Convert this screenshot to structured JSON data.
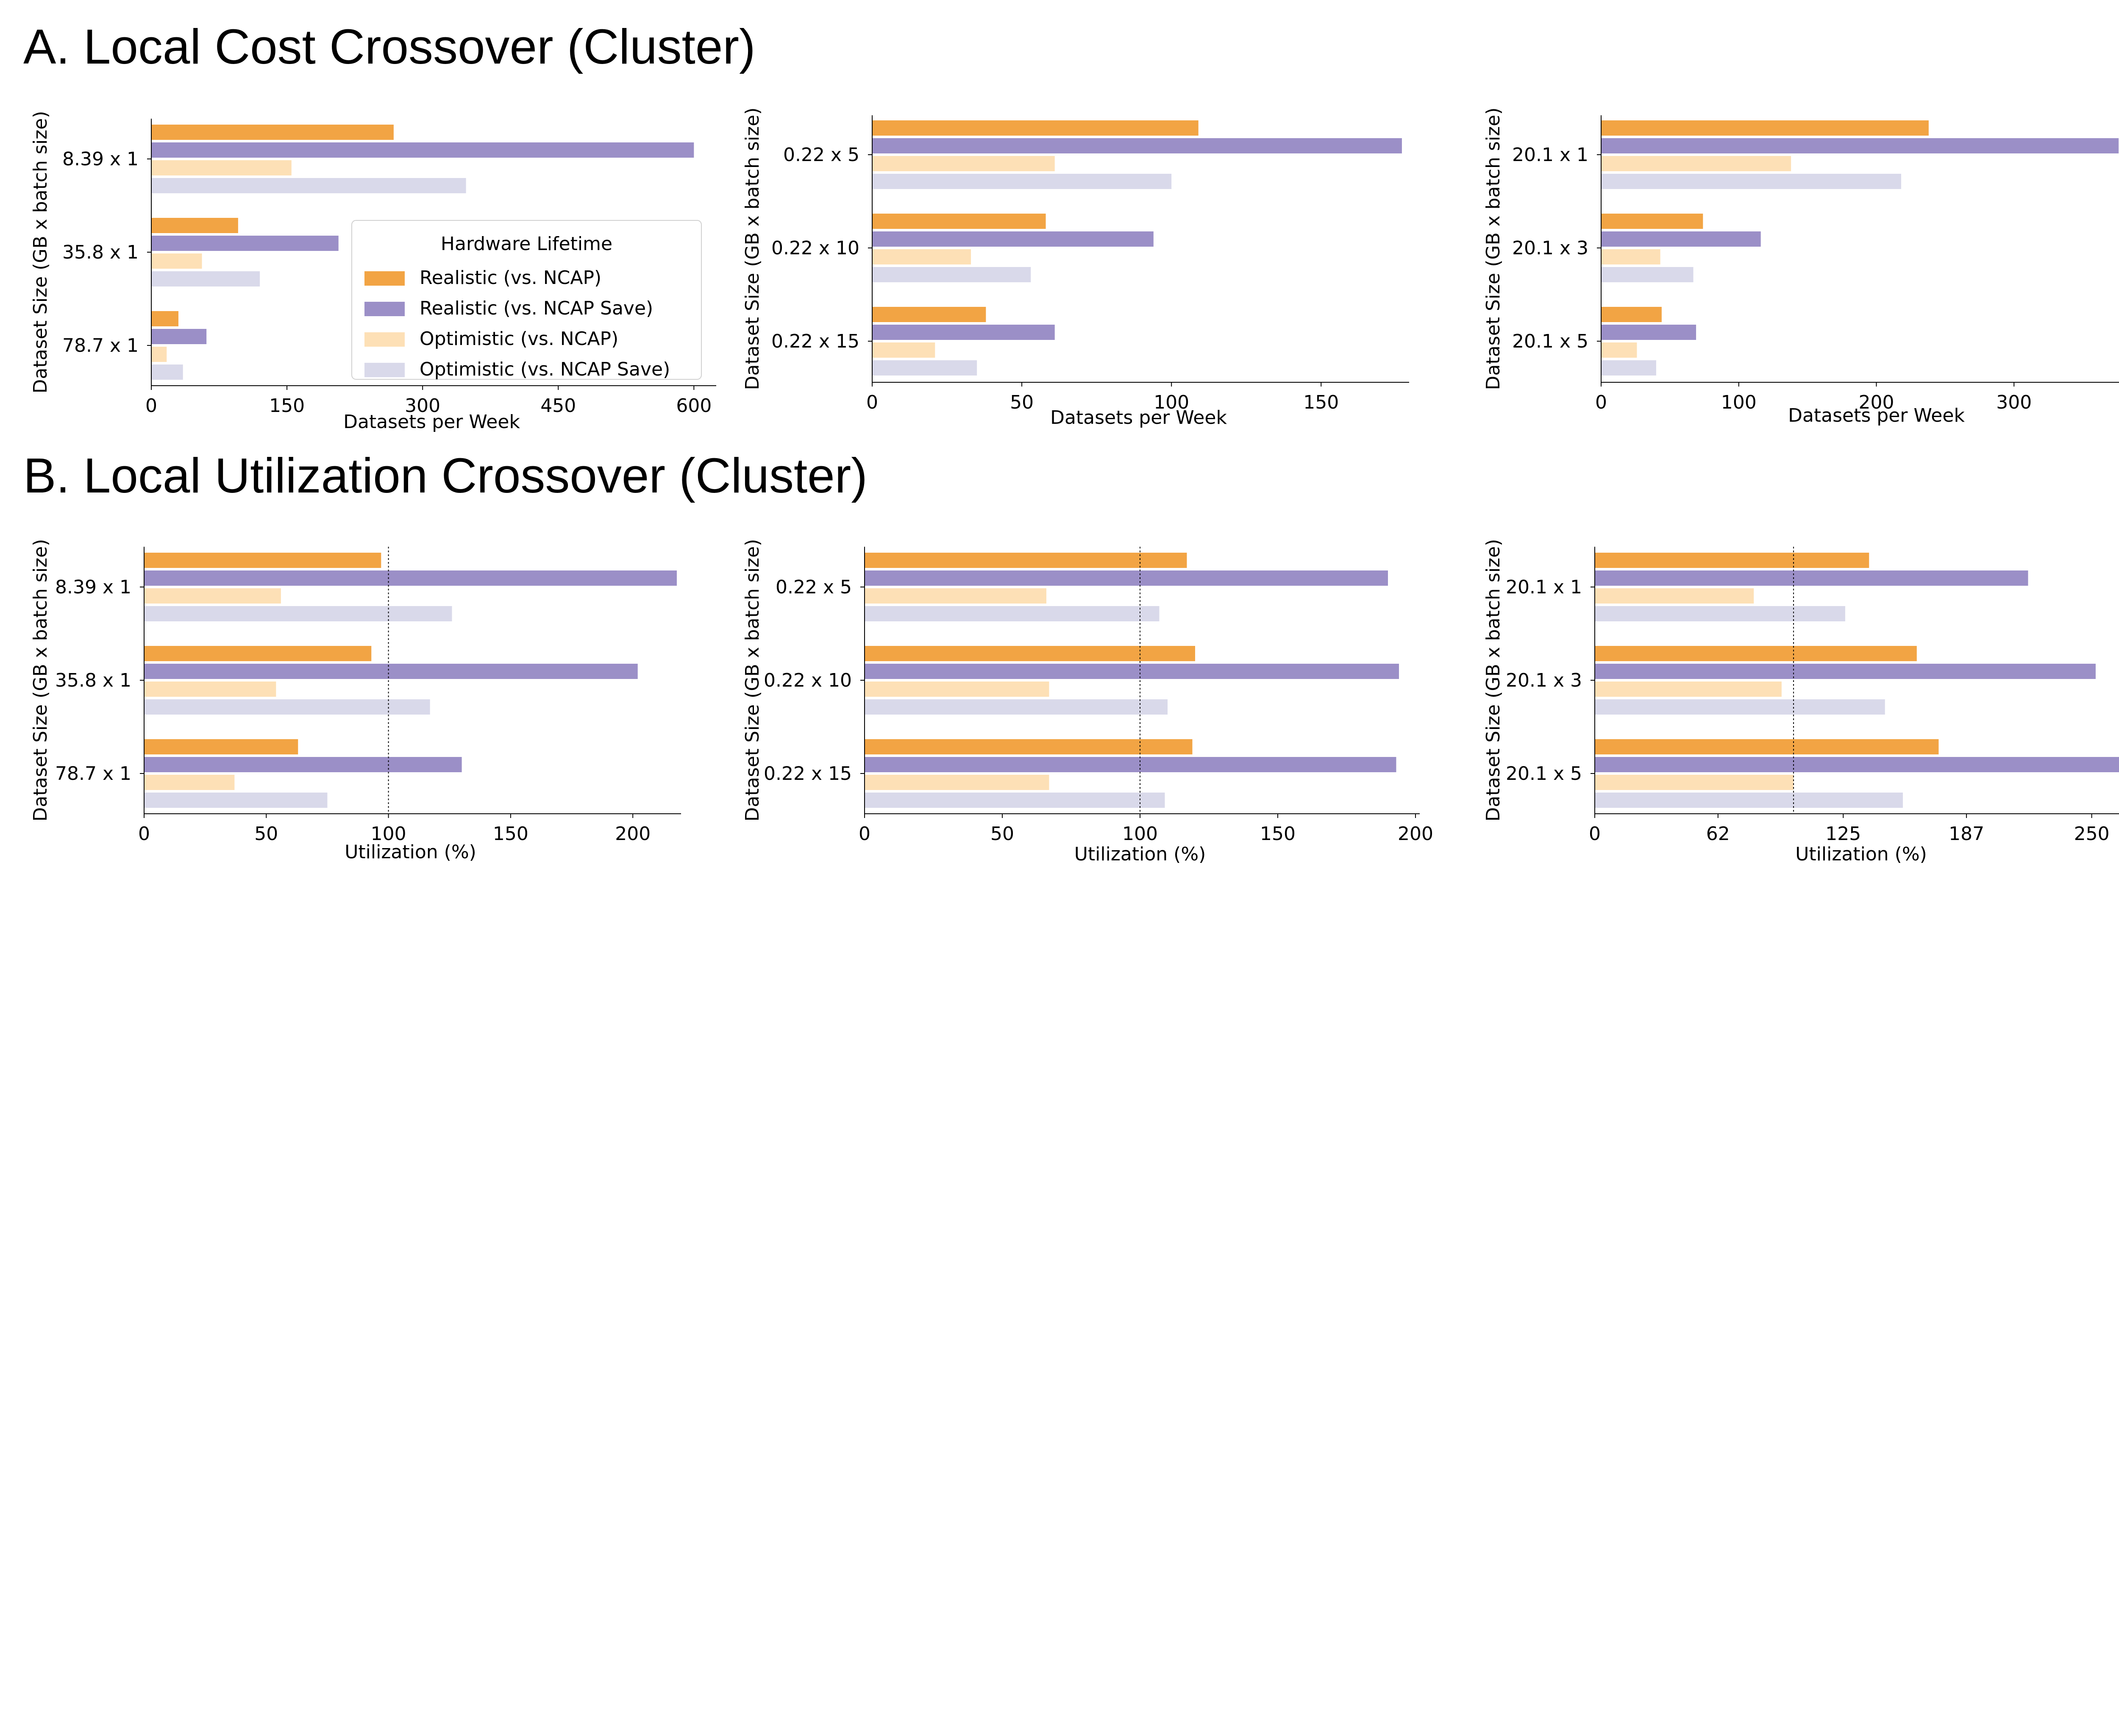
{
  "sections": [
    {
      "id": "A",
      "title": "A. Local Cost Crossover (Cluster)"
    },
    {
      "id": "B",
      "title": "B. Local Utilization Crossover (Cluster)"
    }
  ],
  "legend": {
    "title": "Hardware Lifetime",
    "entries": [
      "Realistic (vs. NCAP)",
      "Realistic (vs. NCAP Save)",
      "Optimistic (vs. NCAP)",
      "Optimistic (vs. NCAP Save)"
    ]
  },
  "colors": [
    "#f2a444",
    "#9b8fc7",
    "#fde0b6",
    "#d9d9ea"
  ],
  "chart_data": [
    {
      "type": "bar",
      "orientation": "horizontal",
      "section": "A",
      "categories": [
        "8.39 x 1",
        "35.8 x 1",
        "78.7 x 1"
      ],
      "xlabel": "Datasets per Week",
      "ylabel": "Dataset Size (GB x batch size)",
      "xlim": [
        0,
        620
      ],
      "xticks": [
        0,
        150,
        300,
        450,
        600
      ],
      "legend_location": "center-right",
      "grid": false,
      "series": [
        {
          "name": "Realistic (vs. NCAP)",
          "values": [
            268,
            96,
            30
          ]
        },
        {
          "name": "Realistic (vs. NCAP Save)",
          "values": [
            600,
            207,
            61
          ]
        },
        {
          "name": "Optimistic (vs. NCAP)",
          "values": [
            155,
            56,
            17
          ]
        },
        {
          "name": "Optimistic (vs. NCAP Save)",
          "values": [
            348,
            120,
            35
          ]
        }
      ]
    },
    {
      "type": "bar",
      "orientation": "horizontal",
      "section": "A",
      "categories": [
        "0.22 x 5",
        "0.22 x 10",
        "0.22 x 15"
      ],
      "xlabel": "Datasets per Week",
      "ylabel": "Dataset Size (GB x batch size)",
      "xlim": [
        0,
        178
      ],
      "xticks": [
        0,
        50,
        100,
        150
      ],
      "grid": false,
      "series": [
        {
          "name": "Realistic (vs. NCAP)",
          "values": [
            109,
            58,
            38
          ]
        },
        {
          "name": "Realistic (vs. NCAP Save)",
          "values": [
            177,
            94,
            61
          ]
        },
        {
          "name": "Optimistic (vs. NCAP)",
          "values": [
            61,
            33,
            21
          ]
        },
        {
          "name": "Optimistic (vs. NCAP Save)",
          "values": [
            100,
            53,
            35
          ]
        }
      ]
    },
    {
      "type": "bar",
      "orientation": "horizontal",
      "section": "A",
      "categories": [
        "20.1 x 1",
        "20.1 x 3",
        "20.1 x 5"
      ],
      "xlabel": "Datasets per Week",
      "ylabel": "Dataset Size (GB x batch size)",
      "xlim": [
        0,
        400
      ],
      "xticks": [
        0,
        100,
        200,
        300,
        400
      ],
      "grid": false,
      "series": [
        {
          "name": "Realistic (vs. NCAP)",
          "values": [
            238,
            74,
            44
          ]
        },
        {
          "name": "Realistic (vs. NCAP Save)",
          "values": [
            376,
            116,
            69
          ]
        },
        {
          "name": "Optimistic (vs. NCAP)",
          "values": [
            138,
            43,
            26
          ]
        },
        {
          "name": "Optimistic (vs. NCAP Save)",
          "values": [
            218,
            67,
            40
          ]
        }
      ]
    },
    {
      "type": "bar",
      "orientation": "horizontal",
      "section": "B",
      "categories": [
        "8.39 x 1",
        "35.8 x 1",
        "78.7 x 1"
      ],
      "xlabel": "Utilization (%)",
      "ylabel": "Dataset Size (GB x batch size)",
      "xlim": [
        0,
        218
      ],
      "xticks": [
        0,
        50,
        100,
        150,
        200
      ],
      "reference_line": 100,
      "grid": false,
      "series": [
        {
          "name": "Realistic (vs. NCAP)",
          "values": [
            97,
            93,
            63
          ]
        },
        {
          "name": "Realistic (vs. NCAP Save)",
          "values": [
            218,
            202,
            130
          ]
        },
        {
          "name": "Optimistic (vs. NCAP)",
          "values": [
            56,
            54,
            37
          ]
        },
        {
          "name": "Optimistic (vs. NCAP Save)",
          "values": [
            126,
            117,
            75
          ]
        }
      ]
    },
    {
      "type": "bar",
      "orientation": "horizontal",
      "section": "B",
      "categories": [
        "0.22 x 5",
        "0.22 x 10",
        "0.22 x 15"
      ],
      "xlabel": "Utilization (%)",
      "ylabel": "Dataset Size (GB x batch size)",
      "xlim": [
        0,
        200
      ],
      "xticks": [
        0,
        50,
        100,
        150,
        200
      ],
      "reference_line": 100,
      "grid": false,
      "series": [
        {
          "name": "Realistic (vs. NCAP)",
          "values": [
            117,
            120,
            119
          ]
        },
        {
          "name": "Realistic (vs. NCAP Save)",
          "values": [
            190,
            194,
            193
          ]
        },
        {
          "name": "Optimistic (vs. NCAP)",
          "values": [
            66,
            67,
            67
          ]
        },
        {
          "name": "Optimistic (vs. NCAP Save)",
          "values": [
            107,
            110,
            109
          ]
        }
      ]
    },
    {
      "type": "bar",
      "orientation": "horizontal",
      "section": "B",
      "categories": [
        "20.1 x 1",
        "20.1 x 3",
        "20.1 x 5"
      ],
      "xlabel": "Utilization (%)",
      "ylabel": "Dataset Size (GB x batch size)",
      "xlim": [
        0,
        268
      ],
      "xticks": [
        0,
        62,
        125,
        187,
        250
      ],
      "reference_line": 100,
      "grid": false,
      "series": [
        {
          "name": "Realistic (vs. NCAP)",
          "values": [
            138,
            162,
            173
          ]
        },
        {
          "name": "Realistic (vs. NCAP Save)",
          "values": [
            218,
            252,
            268
          ]
        },
        {
          "name": "Optimistic (vs. NCAP)",
          "values": [
            80,
            94,
            100
          ]
        },
        {
          "name": "Optimistic (vs. NCAP Save)",
          "values": [
            126,
            146,
            155
          ]
        }
      ]
    }
  ]
}
